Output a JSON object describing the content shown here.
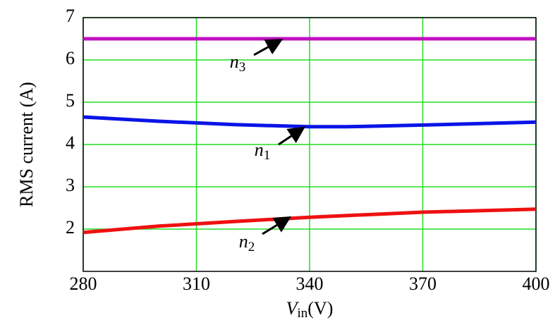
{
  "chart_data": {
    "type": "line",
    "y_label": "RMS current  (A)",
    "x_label": {
      "symbol": "V",
      "subscript": "in",
      "unit": "(V)"
    },
    "xlim": [
      280,
      400
    ],
    "xticks": [
      280,
      310,
      340,
      370,
      400
    ],
    "ylim": [
      1,
      7
    ],
    "yticks": [
      2,
      3,
      4,
      5,
      6,
      7
    ],
    "grid": true,
    "grid_color": "#22dd22",
    "x": [
      280,
      300,
      320,
      340,
      350,
      370,
      400
    ],
    "series": [
      {
        "color": "#0a14e6",
        "values": [
          4.65,
          4.55,
          4.47,
          4.42,
          4.42,
          4.46,
          4.53
        ]
      },
      {
        "color": "#ee1111",
        "values": [
          1.92,
          2.07,
          2.18,
          2.28,
          2.32,
          2.4,
          2.47
        ]
      },
      {
        "color": "#c010c0",
        "values": [
          6.5,
          6.5,
          6.5,
          6.5,
          6.5,
          6.5,
          6.5
        ]
      }
    ],
    "annotations": [
      {
        "label": "n",
        "subscript": "1"
      },
      {
        "label": "n",
        "subscript": "2"
      },
      {
        "label": "n",
        "subscript": "3"
      }
    ]
  }
}
